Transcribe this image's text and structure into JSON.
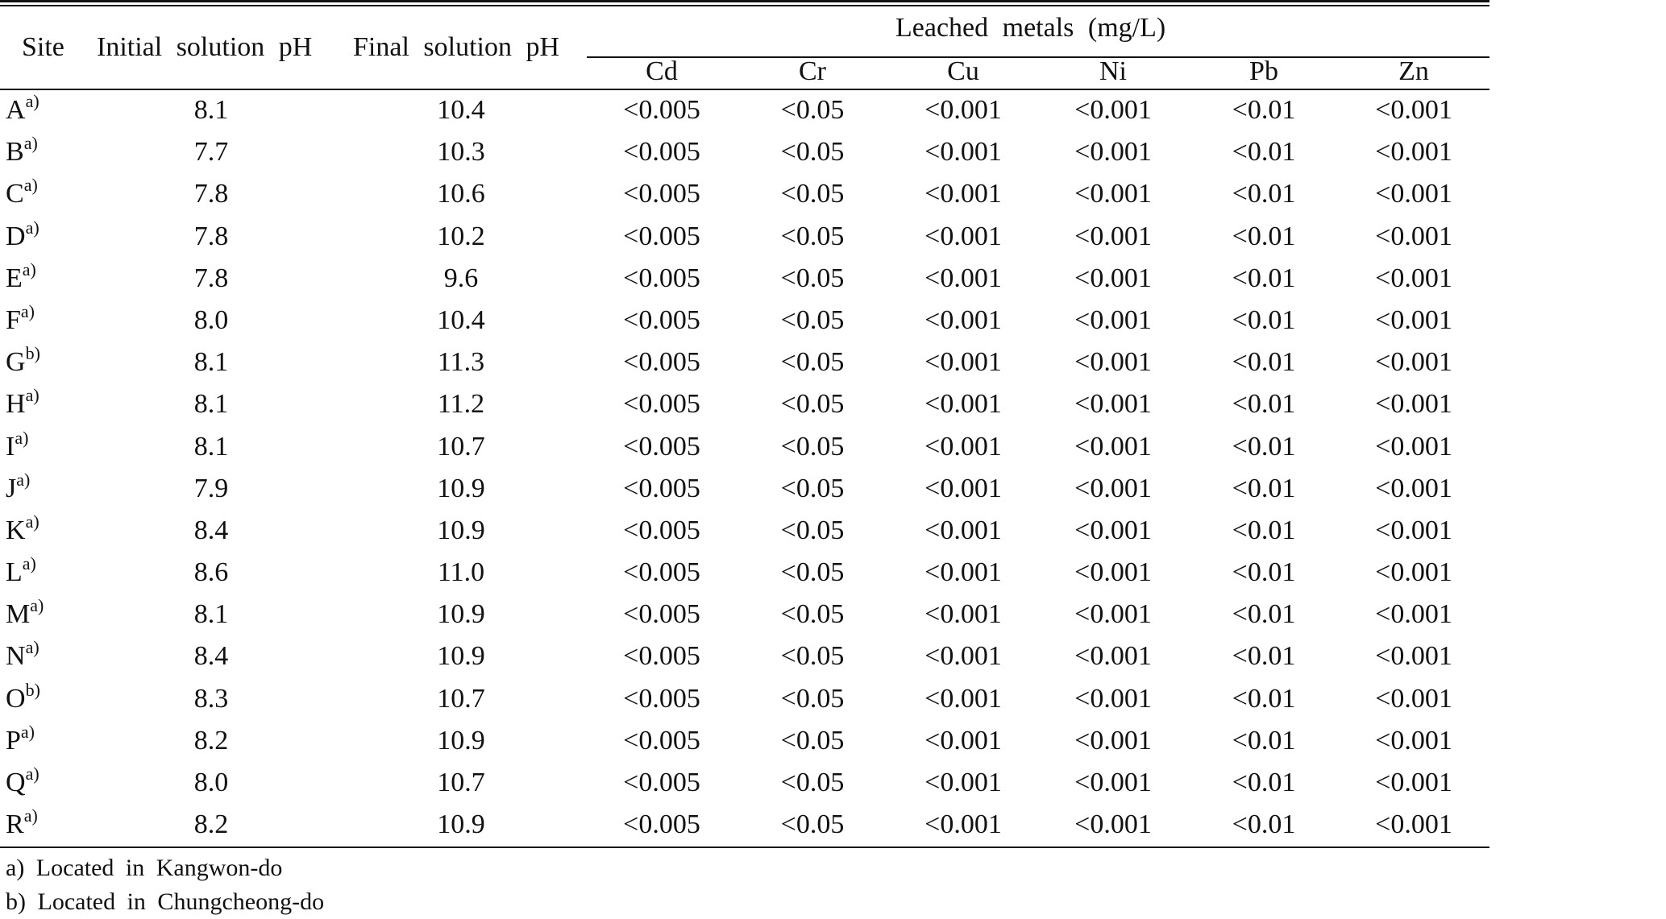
{
  "table": {
    "headers": {
      "site": "Site",
      "initial_ph": "Initial solution pH",
      "final_ph": "Final solution pH",
      "leached_metals": "Leached metals (mg/L)",
      "metals": [
        "Cd",
        "Cr",
        "Cu",
        "Ni",
        "Pb",
        "Zn"
      ]
    },
    "rows": [
      {
        "site": "A",
        "note": "a)",
        "initial": "8.1",
        "final": "10.4",
        "cd": "<0.005",
        "cr": "<0.05",
        "cu": "<0.001",
        "ni": "<0.001",
        "pb": "<0.01",
        "zn": "<0.001"
      },
      {
        "site": "B",
        "note": "a)",
        "initial": "7.7",
        "final": "10.3",
        "cd": "<0.005",
        "cr": "<0.05",
        "cu": "<0.001",
        "ni": "<0.001",
        "pb": "<0.01",
        "zn": "<0.001"
      },
      {
        "site": "C",
        "note": "a)",
        "initial": "7.8",
        "final": "10.6",
        "cd": "<0.005",
        "cr": "<0.05",
        "cu": "<0.001",
        "ni": "<0.001",
        "pb": "<0.01",
        "zn": "<0.001"
      },
      {
        "site": "D",
        "note": "a)",
        "initial": "7.8",
        "final": "10.2",
        "cd": "<0.005",
        "cr": "<0.05",
        "cu": "<0.001",
        "ni": "<0.001",
        "pb": "<0.01",
        "zn": "<0.001"
      },
      {
        "site": "E",
        "note": "a)",
        "initial": "7.8",
        "final": "9.6",
        "cd": "<0.005",
        "cr": "<0.05",
        "cu": "<0.001",
        "ni": "<0.001",
        "pb": "<0.01",
        "zn": "<0.001"
      },
      {
        "site": "F",
        "note": "a)",
        "initial": "8.0",
        "final": "10.4",
        "cd": "<0.005",
        "cr": "<0.05",
        "cu": "<0.001",
        "ni": "<0.001",
        "pb": "<0.01",
        "zn": "<0.001"
      },
      {
        "site": "G",
        "note": "b)",
        "initial": "8.1",
        "final": "11.3",
        "cd": "<0.005",
        "cr": "<0.05",
        "cu": "<0.001",
        "ni": "<0.001",
        "pb": "<0.01",
        "zn": "<0.001"
      },
      {
        "site": "H",
        "note": "a)",
        "initial": "8.1",
        "final": "11.2",
        "cd": "<0.005",
        "cr": "<0.05",
        "cu": "<0.001",
        "ni": "<0.001",
        "pb": "<0.01",
        "zn": "<0.001"
      },
      {
        "site": "I",
        "note": "a)",
        "initial": "8.1",
        "final": "10.7",
        "cd": "<0.005",
        "cr": "<0.05",
        "cu": "<0.001",
        "ni": "<0.001",
        "pb": "<0.01",
        "zn": "<0.001"
      },
      {
        "site": "J",
        "note": "a)",
        "initial": "7.9",
        "final": "10.9",
        "cd": "<0.005",
        "cr": "<0.05",
        "cu": "<0.001",
        "ni": "<0.001",
        "pb": "<0.01",
        "zn": "<0.001"
      },
      {
        "site": "K",
        "note": "a)",
        "initial": "8.4",
        "final": "10.9",
        "cd": "<0.005",
        "cr": "<0.05",
        "cu": "<0.001",
        "ni": "<0.001",
        "pb": "<0.01",
        "zn": "<0.001"
      },
      {
        "site": "L",
        "note": "a)",
        "initial": "8.6",
        "final": "11.0",
        "cd": "<0.005",
        "cr": "<0.05",
        "cu": "<0.001",
        "ni": "<0.001",
        "pb": "<0.01",
        "zn": "<0.001"
      },
      {
        "site": "M",
        "note": "a)",
        "initial": "8.1",
        "final": "10.9",
        "cd": "<0.005",
        "cr": "<0.05",
        "cu": "<0.001",
        "ni": "<0.001",
        "pb": "<0.01",
        "zn": "<0.001"
      },
      {
        "site": "N",
        "note": "a)",
        "initial": "8.4",
        "final": "10.9",
        "cd": "<0.005",
        "cr": "<0.05",
        "cu": "<0.001",
        "ni": "<0.001",
        "pb": "<0.01",
        "zn": "<0.001"
      },
      {
        "site": "O",
        "note": "b)",
        "initial": "8.3",
        "final": "10.7",
        "cd": "<0.005",
        "cr": "<0.05",
        "cu": "<0.001",
        "ni": "<0.001",
        "pb": "<0.01",
        "zn": "<0.001"
      },
      {
        "site": "P",
        "note": "a)",
        "initial": "8.2",
        "final": "10.9",
        "cd": "<0.005",
        "cr": "<0.05",
        "cu": "<0.001",
        "ni": "<0.001",
        "pb": "<0.01",
        "zn": "<0.001"
      },
      {
        "site": "Q",
        "note": "a)",
        "initial": "8.0",
        "final": "10.7",
        "cd": "<0.005",
        "cr": "<0.05",
        "cu": "<0.001",
        "ni": "<0.001",
        "pb": "<0.01",
        "zn": "<0.001"
      },
      {
        "site": "R",
        "note": "a)",
        "initial": "8.2",
        "final": "10.9",
        "cd": "<0.005",
        "cr": "<0.05",
        "cu": "<0.001",
        "ni": "<0.001",
        "pb": "<0.01",
        "zn": "<0.001"
      }
    ]
  },
  "footnotes": [
    "a) Located in Kangwon-do",
    "b) Located in Chungcheong-do"
  ]
}
